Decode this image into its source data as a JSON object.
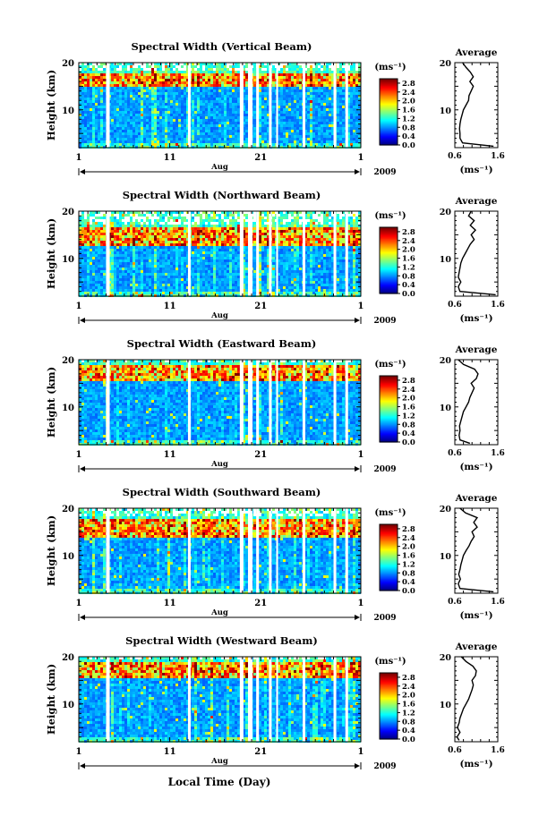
{
  "figure": {
    "xlabel_common": "Local Time (Day)"
  },
  "chart_data": [
    {
      "type": "heatmap",
      "title": "Spectral Width (Vertical Beam)",
      "ylabel": "Height (km)",
      "y_ticks": [
        "10",
        "20"
      ],
      "ylim": [
        2,
        20
      ],
      "x_ticks": [
        "1",
        "11",
        "21",
        "1"
      ],
      "month_label": "Aug",
      "year_label": "2009",
      "colorbar": {
        "unit": "(ms⁻¹)",
        "ticks": [
          "0.0",
          "0.4",
          "0.8",
          "1.2",
          "1.6",
          "2.0",
          "2.4",
          "2.8"
        ],
        "range": [
          0,
          3.0
        ]
      },
      "data_gaps_day": [
        [
          4.0,
          4.4
        ],
        [
          13.0,
          13.3
        ],
        [
          18.7,
          19.1
        ],
        [
          19.6,
          20.1
        ],
        [
          20.5,
          20.8
        ],
        [
          21.9,
          22.2
        ],
        [
          22.7,
          22.9
        ],
        [
          25.6,
          25.9
        ],
        [
          29.0,
          29.3
        ],
        [
          30.3,
          30.6
        ]
      ],
      "high_width_layer_km": [
        15,
        18
      ],
      "average": {
        "title": "Average",
        "xlabel": "(ms⁻¹)",
        "x_ticks": [
          "0.6",
          "1.6"
        ],
        "xlim": [
          0.6,
          1.6
        ],
        "y_ticks": [
          "10",
          "20"
        ],
        "ylim": [
          2,
          20
        ],
        "profile": [
          [
            2.3,
            1.5
          ],
          [
            3,
            0.78
          ],
          [
            4,
            0.72
          ],
          [
            5,
            0.72
          ],
          [
            6,
            0.71
          ],
          [
            7,
            0.72
          ],
          [
            8,
            0.74
          ],
          [
            9,
            0.77
          ],
          [
            10,
            0.8
          ],
          [
            11,
            0.86
          ],
          [
            12,
            0.92
          ],
          [
            13,
            0.93
          ],
          [
            14,
            0.98
          ],
          [
            15,
            1.03
          ],
          [
            16,
            0.95
          ],
          [
            17,
            1.03
          ],
          [
            18,
            0.96
          ],
          [
            19,
            0.86
          ],
          [
            20,
            0.78
          ]
        ]
      }
    },
    {
      "type": "heatmap",
      "title": "Spectral Width (Northward Beam)",
      "ylabel": "Height (km)",
      "y_ticks": [
        "10",
        "20"
      ],
      "ylim": [
        2,
        20
      ],
      "x_ticks": [
        "1",
        "11",
        "21",
        "1"
      ],
      "month_label": "Aug",
      "year_label": "2009",
      "colorbar": {
        "unit": "(ms⁻¹)",
        "ticks": [
          "0.0",
          "0.4",
          "0.8",
          "1.2",
          "1.6",
          "2.0",
          "2.4",
          "2.8"
        ],
        "range": [
          0,
          3.0
        ]
      },
      "data_gaps_day": [
        [
          4.0,
          4.4
        ],
        [
          13.0,
          13.3
        ],
        [
          18.7,
          19.1
        ],
        [
          19.6,
          20.1
        ],
        [
          20.5,
          20.8
        ],
        [
          21.9,
          22.2
        ],
        [
          22.7,
          22.9
        ],
        [
          25.6,
          25.9
        ],
        [
          29.0,
          29.3
        ],
        [
          30.3,
          30.6
        ]
      ],
      "high_width_layer_km": [
        13,
        17
      ],
      "average": {
        "title": "Average",
        "xlabel": "(ms⁻¹)",
        "x_ticks": [
          "0.6",
          "1.6"
        ],
        "xlim": [
          0.6,
          1.6
        ],
        "y_ticks": [
          "10",
          "20"
        ],
        "ylim": [
          2,
          20
        ],
        "profile": [
          [
            2.3,
            1.55
          ],
          [
            3,
            0.72
          ],
          [
            4,
            0.68
          ],
          [
            5,
            0.74
          ],
          [
            6,
            0.68
          ],
          [
            7,
            0.7
          ],
          [
            8,
            0.72
          ],
          [
            9,
            0.74
          ],
          [
            10,
            0.78
          ],
          [
            11,
            0.84
          ],
          [
            12,
            0.9
          ],
          [
            13,
            0.96
          ],
          [
            14,
            1.05
          ],
          [
            15,
            0.98
          ],
          [
            16,
            1.08
          ],
          [
            17,
            0.96
          ],
          [
            18,
            1.05
          ],
          [
            19,
            0.92
          ],
          [
            20,
            0.98
          ]
        ]
      }
    },
    {
      "type": "heatmap",
      "title": "Spectral Width (Eastward Beam)",
      "ylabel": "Height (km)",
      "y_ticks": [
        "10",
        "20"
      ],
      "ylim": [
        2,
        20
      ],
      "x_ticks": [
        "1",
        "11",
        "21",
        "1"
      ],
      "month_label": "Aug",
      "year_label": "2009",
      "colorbar": {
        "unit": "(ms⁻¹)",
        "ticks": [
          "0.0",
          "0.4",
          "0.8",
          "1.2",
          "1.6",
          "2.0",
          "2.4",
          "2.8"
        ],
        "range": [
          0,
          3.0
        ]
      },
      "data_gaps_day": [
        [
          4.0,
          4.4
        ],
        [
          13.0,
          13.3
        ],
        [
          18.7,
          19.1
        ],
        [
          19.6,
          20.1
        ],
        [
          20.5,
          20.8
        ],
        [
          21.9,
          22.2
        ],
        [
          22.7,
          22.9
        ],
        [
          25.6,
          25.9
        ],
        [
          29.0,
          29.3
        ],
        [
          30.3,
          30.6
        ]
      ],
      "high_width_layer_km": [
        16,
        19
      ],
      "average": {
        "title": "Average",
        "xlabel": "(ms⁻¹)",
        "x_ticks": [
          "0.6",
          "1.6"
        ],
        "xlim": [
          0.6,
          1.6
        ],
        "y_ticks": [
          "10",
          "20"
        ],
        "ylim": [
          2,
          20
        ],
        "profile": [
          [
            2.3,
            0.95
          ],
          [
            3,
            0.72
          ],
          [
            4,
            0.7
          ],
          [
            5,
            0.72
          ],
          [
            6,
            0.71
          ],
          [
            7,
            0.74
          ],
          [
            8,
            0.77
          ],
          [
            9,
            0.8
          ],
          [
            10,
            0.86
          ],
          [
            11,
            0.92
          ],
          [
            12,
            0.95
          ],
          [
            13,
            1.0
          ],
          [
            14,
            1.05
          ],
          [
            15,
            0.98
          ],
          [
            16,
            1.1
          ],
          [
            17,
            1.14
          ],
          [
            18,
            1.06
          ],
          [
            19,
            0.8
          ],
          [
            20,
            0.68
          ]
        ]
      }
    },
    {
      "type": "heatmap",
      "title": "Spectral Width (Southward Beam)",
      "ylabel": "Height (km)",
      "y_ticks": [
        "10",
        "20"
      ],
      "ylim": [
        2,
        20
      ],
      "x_ticks": [
        "1",
        "11",
        "21",
        "1"
      ],
      "month_label": "Aug",
      "year_label": "2009",
      "colorbar": {
        "unit": "(ms⁻¹)",
        "ticks": [
          "0.0",
          "0.4",
          "0.8",
          "1.2",
          "1.6",
          "2.0",
          "2.4",
          "2.8"
        ],
        "range": [
          0,
          3.0
        ]
      },
      "data_gaps_day": [
        [
          4.0,
          4.4
        ],
        [
          13.0,
          13.3
        ],
        [
          18.7,
          19.1
        ],
        [
          19.6,
          20.1
        ],
        [
          20.5,
          20.8
        ],
        [
          21.9,
          22.2
        ],
        [
          22.7,
          22.9
        ],
        [
          25.6,
          25.9
        ],
        [
          29.0,
          29.3
        ],
        [
          30.3,
          30.6
        ]
      ],
      "high_width_layer_km": [
        14,
        18
      ],
      "average": {
        "title": "Average",
        "xlabel": "(ms⁻¹)",
        "x_ticks": [
          "0.6",
          "1.6"
        ],
        "xlim": [
          0.6,
          1.6
        ],
        "y_ticks": [
          "10",
          "20"
        ],
        "ylim": [
          2,
          20
        ],
        "profile": [
          [
            2.3,
            1.5
          ],
          [
            3,
            0.72
          ],
          [
            4,
            0.68
          ],
          [
            5,
            0.73
          ],
          [
            6,
            0.69
          ],
          [
            7,
            0.72
          ],
          [
            8,
            0.74
          ],
          [
            9,
            0.77
          ],
          [
            10,
            0.8
          ],
          [
            11,
            0.86
          ],
          [
            12,
            0.93
          ],
          [
            13,
            0.98
          ],
          [
            14,
            1.05
          ],
          [
            15,
            1.0
          ],
          [
            16,
            1.12
          ],
          [
            17,
            1.04
          ],
          [
            18,
            1.12
          ],
          [
            19,
            0.85
          ],
          [
            20,
            0.72
          ]
        ]
      }
    },
    {
      "type": "heatmap",
      "title": "Spectral Width (Westward Beam)",
      "ylabel": "Height (km)",
      "y_ticks": [
        "10",
        "20"
      ],
      "ylim": [
        2,
        20
      ],
      "x_ticks": [
        "1",
        "11",
        "21",
        "1"
      ],
      "month_label": "Aug",
      "year_label": "2009",
      "colorbar": {
        "unit": "(ms⁻¹)",
        "ticks": [
          "0.0",
          "0.4",
          "0.8",
          "1.2",
          "1.6",
          "2.0",
          "2.4",
          "2.8"
        ],
        "range": [
          0,
          3.0
        ]
      },
      "data_gaps_day": [
        [
          4.0,
          4.4
        ],
        [
          13.0,
          13.3
        ],
        [
          18.7,
          19.1
        ],
        [
          19.6,
          20.1
        ],
        [
          20.5,
          20.8
        ],
        [
          21.9,
          22.2
        ],
        [
          22.7,
          22.9
        ],
        [
          25.6,
          25.9
        ],
        [
          29.0,
          29.3
        ],
        [
          30.3,
          30.6
        ]
      ],
      "high_width_layer_km": [
        16,
        19
      ],
      "average": {
        "title": "Average",
        "xlabel": "(ms⁻¹)",
        "x_ticks": [
          "0.6",
          "1.6"
        ],
        "xlim": [
          0.6,
          1.6
        ],
        "y_ticks": [
          "10",
          "20"
        ],
        "ylim": [
          2,
          20
        ],
        "profile": [
          [
            2.3,
            0.7
          ],
          [
            3,
            0.65
          ],
          [
            4,
            0.72
          ],
          [
            5,
            0.66
          ],
          [
            6,
            0.7
          ],
          [
            7,
            0.72
          ],
          [
            8,
            0.76
          ],
          [
            9,
            0.8
          ],
          [
            10,
            0.86
          ],
          [
            11,
            0.92
          ],
          [
            12,
            0.96
          ],
          [
            13,
            1.0
          ],
          [
            14,
            1.03
          ],
          [
            15,
            1.0
          ],
          [
            16,
            1.08
          ],
          [
            17,
            1.1
          ],
          [
            18,
            1.02
          ],
          [
            19,
            0.86
          ],
          [
            20,
            0.75
          ]
        ]
      }
    }
  ]
}
